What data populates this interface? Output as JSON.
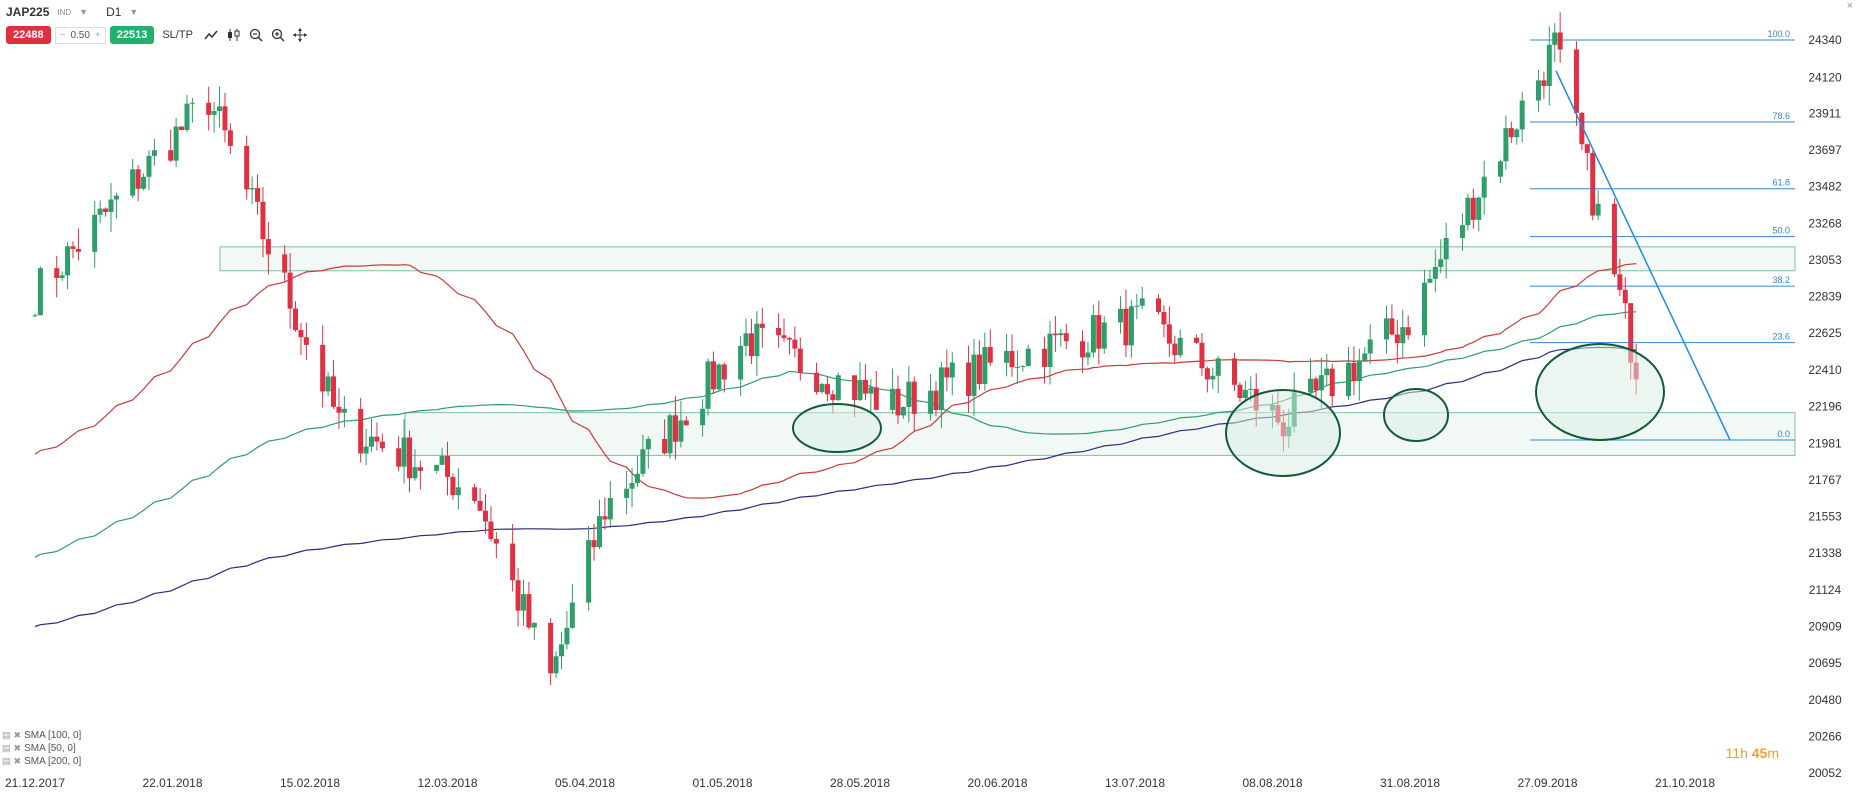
{
  "header": {
    "symbol": "JAP225",
    "symbol_type": "IND",
    "timeframe": "D1",
    "close_glyph": "×"
  },
  "trade": {
    "sell_price": "22488",
    "spread_minus": "−",
    "spread_value": "0.50",
    "spread_plus": "+",
    "buy_price": "22513",
    "sltp_label": "SL/TP"
  },
  "toolbar": {
    "icons": [
      "line-chart-icon",
      "candles-icon",
      "zoom-out-icon",
      "zoom-in-icon",
      "crosshair-icon"
    ]
  },
  "indicators": [
    {
      "label": "SMA [100, 0]"
    },
    {
      "label": "SMA [50, 0]"
    },
    {
      "label": "SMA [200, 0]"
    }
  ],
  "timer": {
    "hours": "11h",
    "minutes": "45",
    "unit": "m"
  },
  "colors": {
    "bull": "#2e9e6a",
    "bear": "#e03043",
    "sma50": "#cc3a3a",
    "sma100": "#2e9e6a",
    "sma200": "#2b2d7a",
    "fib": "#2f86d6",
    "zone": "#7fbfa3",
    "trendline": "#1f8be6"
  },
  "chart_data": {
    "type": "candlestick",
    "yaxis_ticks": [
      "24340",
      "24120",
      "23911",
      "23697",
      "23482",
      "23268",
      "23053",
      "22839",
      "22625",
      "22410",
      "22196",
      "21981",
      "21767",
      "21553",
      "21338",
      "21124",
      "20909",
      "20695",
      "20480",
      "20266",
      "20052"
    ],
    "ylim": [
      20052,
      24340
    ],
    "xaxis_ticks": [
      "21.12.2017",
      "22.01.2018",
      "15.02.2018",
      "12.03.2018",
      "05.04.2018",
      "01.05.2018",
      "28.05.2018",
      "20.06.2018",
      "13.07.2018",
      "08.08.2018",
      "31.08.2018",
      "27.09.2018",
      "21.10.2018"
    ],
    "fibonacci": [
      {
        "label": "100.0",
        "value": 24340
      },
      {
        "label": "78.6",
        "value": 23860
      },
      {
        "label": "61.8",
        "value": 23470
      },
      {
        "label": "50.0",
        "value": 23190
      },
      {
        "label": "38.2",
        "value": 22900
      },
      {
        "label": "23.6",
        "value": 22570
      },
      {
        "label": "0.0",
        "value": 22000
      }
    ],
    "support_zones": [
      {
        "low": 22990,
        "high": 23130
      },
      {
        "low": 21910,
        "high": 22160
      }
    ],
    "key_points": [
      {
        "date": "21.12.2017",
        "close": 22860
      },
      {
        "date": "22.01.2018",
        "close": 24000
      },
      {
        "date": "15.02.2018",
        "close": 22100
      },
      {
        "date": "12.03.2018",
        "close": 21700
      },
      {
        "date": "26.03.2018",
        "close": 20600
      },
      {
        "date": "05.04.2018",
        "close": 21600
      },
      {
        "date": "01.05.2018",
        "close": 22600
      },
      {
        "date": "28.05.2018",
        "close": 22200
      },
      {
        "date": "20.06.2018",
        "close": 22500
      },
      {
        "date": "13.07.2018",
        "close": 22700
      },
      {
        "date": "08.08.2018",
        "close": 22100
      },
      {
        "date": "31.08.2018",
        "close": 22700
      },
      {
        "date": "27.09.2018",
        "close": 24300
      },
      {
        "date": "12.10.2018",
        "close": 22450
      }
    ],
    "series": [
      {
        "name": "SMA [100, 0]"
      },
      {
        "name": "SMA [50, 0]"
      },
      {
        "name": "SMA [200, 0]"
      }
    ],
    "grid": false,
    "legend": "bottom-left"
  }
}
